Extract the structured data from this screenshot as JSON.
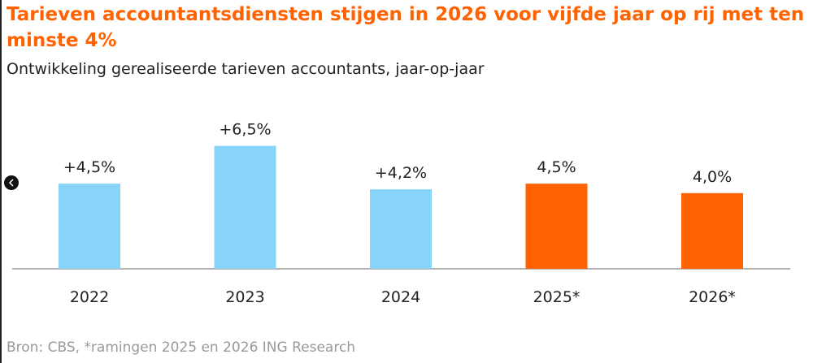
{
  "chart_data": {
    "type": "bar",
    "title": "Tarieven accountantsdiensten stijgen in 2026 voor vijfde jaar op rij met ten minste 4%",
    "subtitle": "Ontwikkeling gerealiseerde tarieven accountants, jaar-op-jaar",
    "source": "Bron: CBS, *ramingen 2025 en 2026 ING Research",
    "categories": [
      "2022",
      "2023",
      "2024",
      "2025*",
      "2026*"
    ],
    "values": [
      4.5,
      6.5,
      4.2,
      4.5,
      4.0
    ],
    "value_labels": [
      "+4,5%",
      "+6,5%",
      "+4,2%",
      "4,5%",
      "4,0%"
    ],
    "colors": [
      "#87d4f8",
      "#87d4f8",
      "#87d4f8",
      "#ff6200",
      "#ff6200"
    ]
  }
}
